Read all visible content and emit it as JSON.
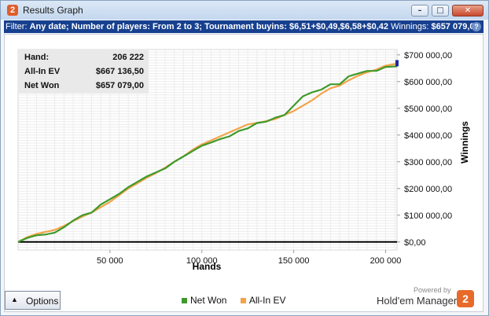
{
  "window": {
    "title": "Results Graph",
    "app_icon_text": "2",
    "buttons": [
      "minimize",
      "maximize",
      "close"
    ]
  },
  "filter": {
    "label": "Filter:",
    "text": "Any date; Number of players: From 2 to 3; Tournament buyins: $6,51+$0,49,$6,58+$0,42",
    "winnings_label": "Winnings:",
    "winnings_value": "$657 079,00"
  },
  "stats": [
    {
      "key": "Hand:",
      "value": "206 222"
    },
    {
      "key": "All-In EV",
      "value": "$667 136,50"
    },
    {
      "key": "Net Won",
      "value": "$657 079,00"
    }
  ],
  "options_button": {
    "label": "Options"
  },
  "legend": [
    {
      "name": "Net Won",
      "color": "#3f9a2b"
    },
    {
      "name": "All-In EV",
      "color": "#f3a34a"
    }
  ],
  "branding": {
    "powered_by": "Powered by",
    "name": "Hold'em Manager",
    "logo_text": "2"
  },
  "colors": {
    "net_won": "#3f9a2b",
    "all_in_ev": "#f3a34a",
    "filter_bar": "#17408f"
  },
  "chart_data": {
    "type": "line",
    "xlabel": "Hands",
    "ylabel": "Winnings",
    "xlim": [
      0,
      206222
    ],
    "ylim": [
      -30000,
      720000
    ],
    "x_ticks": [
      50000,
      100000,
      150000,
      200000
    ],
    "x_tick_labels": [
      "50 000",
      "100 000",
      "150 000",
      "200 000"
    ],
    "y_ticks": [
      0,
      100000,
      200000,
      300000,
      400000,
      500000,
      600000,
      700000
    ],
    "y_tick_labels": [
      "$0,00",
      "$100 000,00",
      "$200 000,00",
      "$300 000,00",
      "$400 000,00",
      "$500 000,00",
      "$600 000,00",
      "$700 000,00"
    ],
    "grid": true,
    "legend_position": "bottom-center",
    "series": [
      {
        "name": "Net Won",
        "x": [
          0,
          5000,
          10000,
          15000,
          20000,
          25000,
          30000,
          35000,
          40000,
          45000,
          50000,
          55000,
          60000,
          65000,
          70000,
          75000,
          80000,
          85000,
          90000,
          95000,
          100000,
          105000,
          110000,
          115000,
          120000,
          125000,
          130000,
          135000,
          140000,
          145000,
          150000,
          155000,
          160000,
          165000,
          170000,
          175000,
          180000,
          185000,
          190000,
          195000,
          200000,
          206222
        ],
        "y": [
          0,
          15000,
          25000,
          28000,
          35000,
          55000,
          80000,
          100000,
          110000,
          140000,
          160000,
          180000,
          205000,
          225000,
          245000,
          260000,
          275000,
          300000,
          320000,
          340000,
          360000,
          372000,
          385000,
          395000,
          415000,
          425000,
          445000,
          450000,
          465000,
          475000,
          510000,
          545000,
          560000,
          570000,
          590000,
          590000,
          620000,
          630000,
          640000,
          640000,
          655000,
          657079
        ]
      },
      {
        "name": "All-In EV",
        "x": [
          0,
          5000,
          10000,
          15000,
          20000,
          25000,
          30000,
          35000,
          40000,
          45000,
          50000,
          55000,
          60000,
          65000,
          70000,
          75000,
          80000,
          85000,
          90000,
          95000,
          100000,
          105000,
          110000,
          115000,
          120000,
          125000,
          130000,
          135000,
          140000,
          145000,
          150000,
          155000,
          160000,
          165000,
          170000,
          175000,
          180000,
          185000,
          190000,
          195000,
          200000,
          206222
        ],
        "y": [
          0,
          18000,
          30000,
          38000,
          45000,
          60000,
          78000,
          95000,
          110000,
          130000,
          150000,
          175000,
          200000,
          220000,
          240000,
          258000,
          278000,
          300000,
          320000,
          345000,
          365000,
          380000,
          395000,
          410000,
          425000,
          440000,
          445000,
          452000,
          460000,
          475000,
          490000,
          510000,
          530000,
          555000,
          575000,
          585000,
          605000,
          622000,
          635000,
          645000,
          660000,
          667136
        ]
      }
    ]
  }
}
